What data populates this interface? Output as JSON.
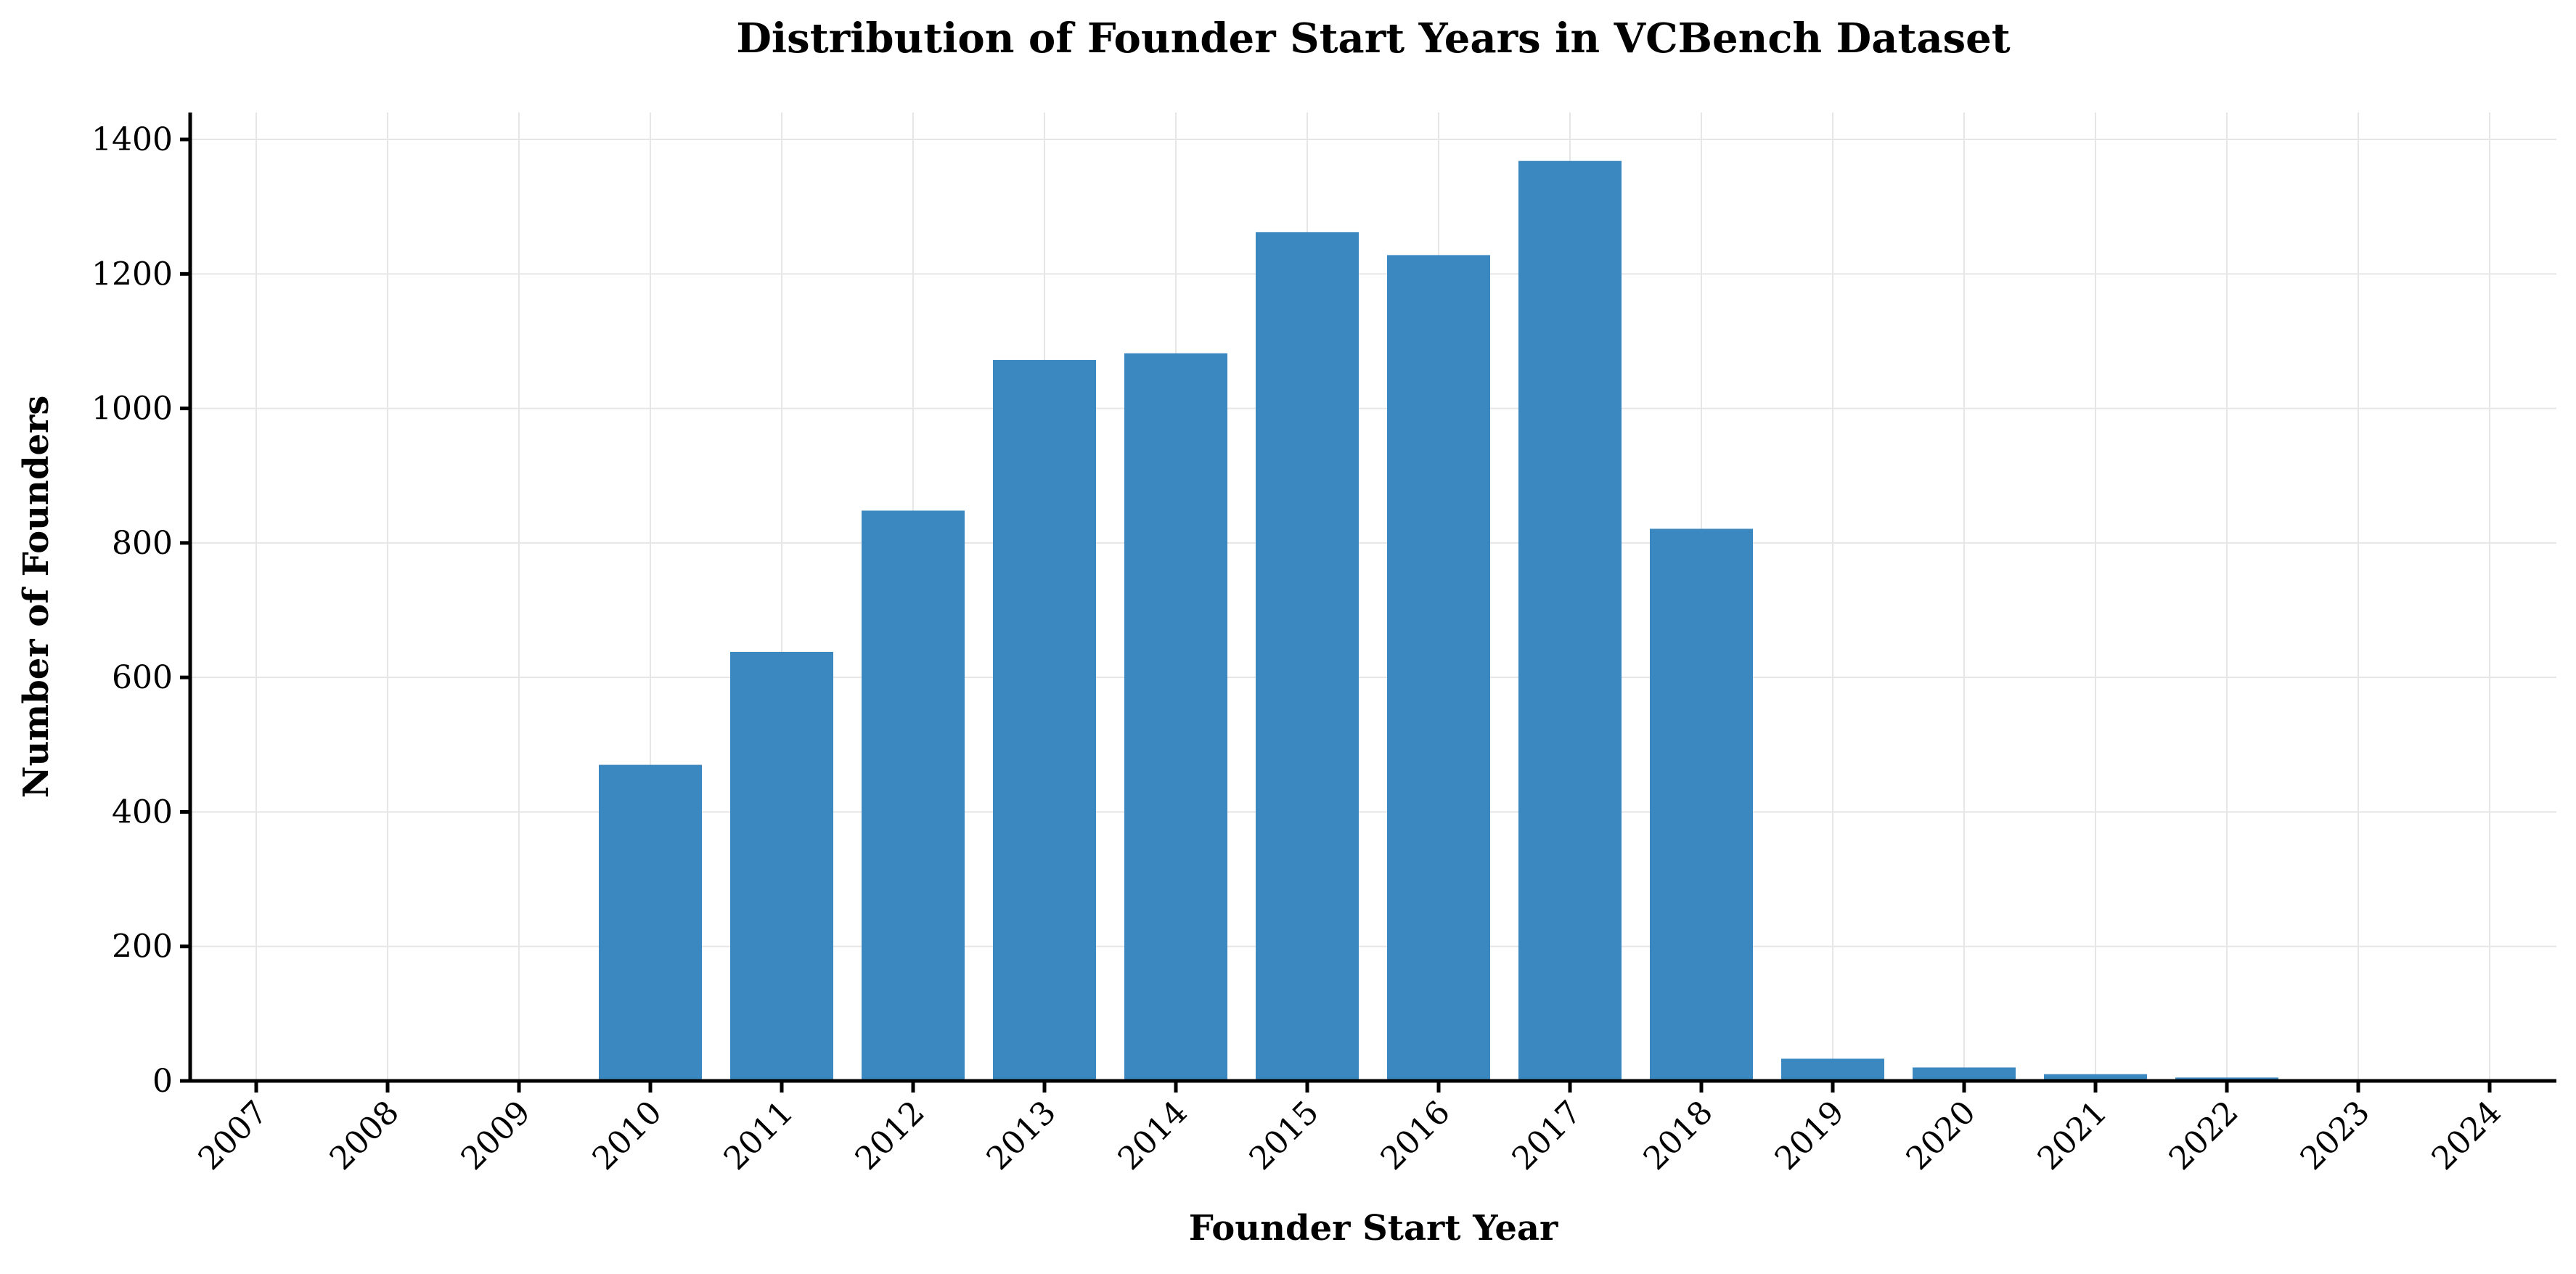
{
  "chart_data": {
    "type": "bar",
    "title": "Distribution of Founder Start Years in VCBench Dataset",
    "xlabel": "Founder Start Year",
    "ylabel": "Number of Founders",
    "categories": [
      "2007",
      "2008",
      "2009",
      "2010",
      "2011",
      "2012",
      "2013",
      "2014",
      "2015",
      "2016",
      "2017",
      "2018",
      "2019",
      "2020",
      "2021",
      "2022",
      "2023",
      "2024"
    ],
    "values": [
      0,
      0,
      0,
      470,
      638,
      848,
      1072,
      1082,
      1262,
      1228,
      1368,
      821,
      33,
      20,
      10,
      5,
      0,
      0
    ],
    "ylim": [
      0,
      1440
    ],
    "yticks": [
      0,
      200,
      400,
      600,
      800,
      1000,
      1200,
      1400
    ],
    "grid": true,
    "bar_color": "#3b88c0"
  }
}
